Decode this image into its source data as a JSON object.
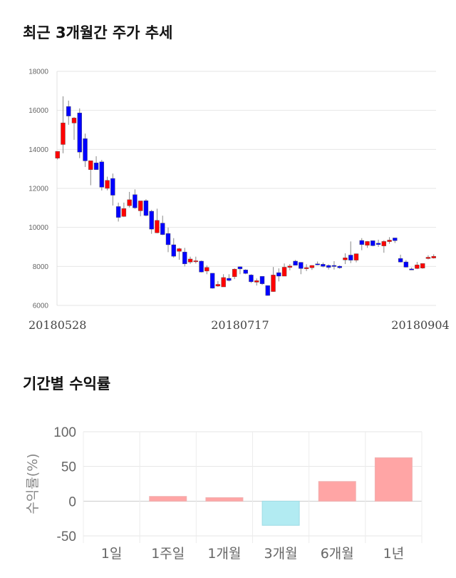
{
  "colors": {
    "up": "#ff0000",
    "down": "#0000ff",
    "bar_pos": "#ffa5a5",
    "bar_neg": "#b2ebf2"
  },
  "chart_data": [
    {
      "type": "candlestick",
      "title": "최근 3개월간 주가 추세",
      "ylim": [
        6000,
        18000
      ],
      "yticks": [
        "6000",
        "8000",
        "10000",
        "12000",
        "14000",
        "16000",
        "18000"
      ],
      "xtick_labels": [
        {
          "label": "20180528",
          "index": 0
        },
        {
          "label": "20180717",
          "index": 33
        },
        {
          "label": "20180904",
          "index": 66
        }
      ],
      "grid": true,
      "ohlc": [
        [
          13550,
          13900,
          13480,
          13900
        ],
        [
          14250,
          16720,
          13800,
          15360
        ],
        [
          16200,
          16500,
          15260,
          15710
        ],
        [
          15350,
          15660,
          14490,
          15610
        ],
        [
          15870,
          16100,
          13550,
          13860
        ],
        [
          14550,
          14810,
          13100,
          13410
        ],
        [
          12960,
          13420,
          12160,
          13420
        ],
        [
          13310,
          13650,
          12950,
          12960
        ],
        [
          13360,
          13460,
          11890,
          12060
        ],
        [
          12000,
          12600,
          11900,
          12410
        ],
        [
          12510,
          12760,
          11120,
          11650
        ],
        [
          11070,
          11270,
          10300,
          10510
        ],
        [
          10560,
          11270,
          10530,
          10970
        ],
        [
          11110,
          11820,
          11020,
          11420
        ],
        [
          11680,
          11950,
          10950,
          11000
        ],
        [
          10850,
          11360,
          10570,
          11360
        ],
        [
          11370,
          11450,
          10570,
          10610
        ],
        [
          10830,
          10900,
          9670,
          9910
        ],
        [
          9720,
          10960,
          9700,
          10360
        ],
        [
          10220,
          10600,
          9600,
          9630
        ],
        [
          9690,
          9990,
          8730,
          9110
        ],
        [
          9110,
          9450,
          8450,
          8520
        ],
        [
          8770,
          8950,
          8340,
          8910
        ],
        [
          8740,
          8950,
          8000,
          8130
        ],
        [
          8220,
          8500,
          8130,
          8380
        ],
        [
          8270,
          8500,
          8150,
          8290
        ],
        [
          8270,
          8300,
          7690,
          7710
        ],
        [
          7760,
          8050,
          7600,
          7950
        ],
        [
          7650,
          7650,
          6860,
          6880
        ],
        [
          6990,
          7250,
          6950,
          7080
        ],
        [
          6950,
          7600,
          6950,
          7430
        ],
        [
          7390,
          7600,
          7230,
          7280
        ],
        [
          7470,
          7900,
          7350,
          7860
        ],
        [
          7980,
          8000,
          7600,
          7870
        ],
        [
          7820,
          7850,
          7600,
          7640
        ],
        [
          7560,
          7600,
          7150,
          7210
        ],
        [
          7190,
          7380,
          7020,
          7270
        ],
        [
          7490,
          7500,
          7050,
          7110
        ],
        [
          7020,
          7020,
          6500,
          6510
        ],
        [
          6710,
          7970,
          6700,
          7560
        ],
        [
          7680,
          7900,
          7230,
          7500
        ],
        [
          7500,
          8150,
          7500,
          7960
        ],
        [
          7950,
          8120,
          7800,
          8020
        ],
        [
          8270,
          8330,
          8060,
          8060
        ],
        [
          8210,
          8220,
          7600,
          7890
        ],
        [
          7880,
          8110,
          7760,
          7940
        ],
        [
          7930,
          8060,
          7820,
          8050
        ],
        [
          8130,
          8250,
          8060,
          8080
        ],
        [
          8110,
          8200,
          7950,
          8000
        ],
        [
          8050,
          8100,
          7840,
          7950
        ],
        [
          8050,
          8270,
          7840,
          8010
        ],
        [
          8010,
          8050,
          7880,
          7930
        ],
        [
          8330,
          8670,
          8120,
          8440
        ],
        [
          8580,
          9280,
          8170,
          8320
        ],
        [
          8320,
          8660,
          8210,
          8650
        ],
        [
          9330,
          9450,
          8830,
          9120
        ],
        [
          9080,
          9300,
          8950,
          9280
        ],
        [
          9320,
          9320,
          9030,
          9060
        ],
        [
          9190,
          9370,
          9000,
          9120
        ],
        [
          9050,
          9340,
          8700,
          9280
        ],
        [
          9270,
          9500,
          9160,
          9350
        ],
        [
          9460,
          9460,
          9200,
          9320
        ],
        [
          8410,
          8600,
          8200,
          8220
        ],
        [
          8230,
          8320,
          7940,
          7960
        ],
        [
          7870,
          7940,
          7840,
          7860
        ],
        [
          7890,
          8230,
          7860,
          8080
        ],
        [
          7910,
          8150,
          7880,
          8150
        ],
        [
          8400,
          8570,
          8360,
          8470
        ],
        [
          8430,
          8620,
          8400,
          8520
        ]
      ]
    },
    {
      "type": "bar",
      "title": "기간별 수익률",
      "categories": [
        "1일",
        "1주일",
        "1개월",
        "3개월",
        "6개월",
        "1년"
      ],
      "values": [
        0,
        6.8,
        5.1,
        -34.8,
        28.3,
        62.5
      ],
      "ylabel": "수익률(%)",
      "ylim": [
        -50,
        100
      ],
      "yticks": [
        "100",
        "50",
        "0",
        "-50"
      ],
      "grid": true
    }
  ]
}
